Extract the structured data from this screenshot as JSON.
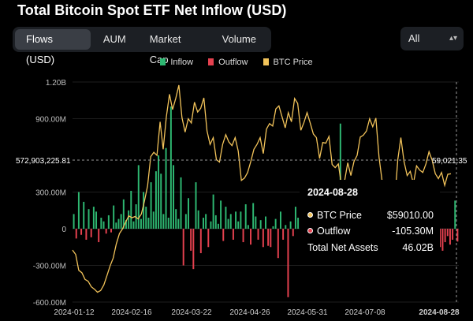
{
  "title": "Total Bitcoin Spot ETF Net Inflow (USD)",
  "tabs": [
    "Flows (USD)",
    "AUM",
    "Market Cap",
    "Volume"
  ],
  "range_select": {
    "value": "All",
    "arrow": "⌃⌄"
  },
  "colors": {
    "inflow": "#2eb872",
    "outflow": "#e5414f",
    "price": "#f2c35a"
  },
  "legend": {
    "inflow": "Inflow",
    "outflow": "Outflow",
    "price": "BTC Price"
  },
  "crosshair": {
    "left_label": "572,903,225.81",
    "right_label": "59,021.35"
  },
  "tooltip": {
    "date": "2024-08-28",
    "price_label": "BTC Price",
    "price_value": "$59010.00",
    "outflow_label": "Outflow",
    "outflow_value": "-105.30M",
    "assets_label": "Total Net Assets",
    "assets_value": "46.02B"
  },
  "chart_data": {
    "type": "bar",
    "ylim": [
      -600000000,
      1200000000
    ],
    "y_ticks": [
      {
        "v": 1200000000,
        "label": "1.20B"
      },
      {
        "v": 900000000,
        "label": "900.00M"
      },
      {
        "v": 300000000,
        "label": "300.00M"
      },
      {
        "v": 0,
        "label": "0"
      },
      {
        "v": -300000000,
        "label": "-300.00M"
      },
      {
        "v": -600000000,
        "label": "-600.00M"
      }
    ],
    "x_ticks": [
      "2024-01-12",
      "2024-02-16",
      "2024-03-22",
      "2024-04-26",
      "2024-05-31",
      "2024-07-08",
      "2024-08-28"
    ],
    "flows_musd": [
      120,
      -80,
      300,
      -50,
      220,
      -90,
      160,
      -70,
      180,
      140,
      -110,
      90,
      60,
      -40,
      110,
      -30,
      190,
      50,
      80,
      120,
      240,
      70,
      150,
      310,
      60,
      200,
      520,
      80,
      300,
      180,
      90,
      380,
      140,
      470,
      600,
      450,
      120,
      660,
      90,
      1000,
      520,
      160,
      80,
      420,
      -300,
      120,
      250,
      -180,
      -330,
      380,
      150,
      -200,
      90,
      120,
      -150,
      60,
      280,
      110,
      40,
      230,
      -100,
      180,
      80,
      120,
      -90,
      140,
      60,
      140,
      -110,
      200,
      30,
      -130,
      210,
      100,
      -90,
      70,
      -150,
      100,
      -140,
      -150,
      20,
      80,
      -240,
      140,
      -90,
      30,
      -560,
      60,
      -60,
      180,
      90,
      -130,
      200,
      120,
      -100,
      80,
      150,
      -210,
      30,
      60,
      200,
      110,
      170,
      80,
      90,
      320,
      60,
      860,
      310,
      190,
      -80,
      110,
      260,
      180,
      -60,
      20,
      -140,
      90,
      -200,
      40,
      230,
      120,
      -150,
      -60,
      110,
      -40,
      20,
      90,
      -70,
      -160,
      -50,
      210,
      60,
      -180,
      -120,
      -90,
      -140,
      -200,
      -80,
      -110,
      120,
      60,
      -100,
      140,
      200,
      -140,
      260,
      -150,
      -180,
      -110,
      -60,
      -130,
      -90,
      230,
      -105
    ],
    "price_series": [
      46500,
      45800,
      43200,
      42800,
      41700,
      41400,
      40500,
      40100,
      39600,
      39900,
      40800,
      42300,
      43900,
      45200,
      47500,
      49200,
      50000,
      51100,
      52100,
      51800,
      52000,
      51600,
      52400,
      54500,
      57000,
      61800,
      62500,
      62000,
      67500,
      63000,
      68300,
      72000,
      69500,
      71300,
      73500,
      68200,
      65800,
      68000,
      67300,
      70700,
      69100,
      69700,
      71400,
      66000,
      63800,
      64900,
      61300,
      60900,
      63800,
      65400,
      64200,
      63600,
      64900,
      62700,
      57900,
      58300,
      59200,
      61000,
      63000,
      63800,
      64900,
      62300,
      66300,
      67200,
      66800,
      69600,
      70100,
      68300,
      66500,
      69000,
      67500,
      71300,
      70500,
      66100,
      67400,
      69000,
      67300,
      65500,
      64900,
      61500,
      64100,
      64000,
      65100,
      60500,
      60000,
      60600,
      57000,
      57800,
      60800,
      58700,
      61000,
      62000,
      65000,
      65300,
      66000,
      68000,
      66700,
      68100,
      61700,
      57800,
      54000,
      56100,
      55100,
      54400,
      61300,
      64900,
      61000,
      58700,
      59400,
      57400,
      60300,
      59600,
      59200,
      60600,
      62600,
      61200,
      59000,
      58200,
      59200,
      57100,
      58900,
      59000
    ],
    "price_range": [
      38000,
      74000
    ]
  }
}
